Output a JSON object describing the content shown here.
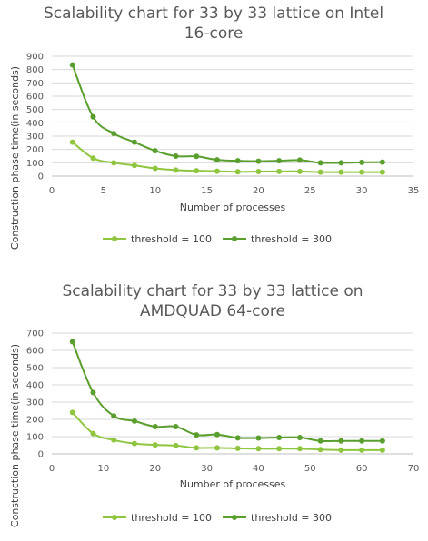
{
  "colors": {
    "series1": "#8fc53f",
    "series2": "#5a9e2e"
  },
  "chart_data": [
    {
      "type": "line",
      "title_line1": "Scalability chart for 33 by 33 lattice on Intel",
      "title_line2": "16-core",
      "xlabel": "Number of processes",
      "ylabel": "Construction phase time(in seconds)",
      "xlim": [
        0,
        35
      ],
      "ylim": [
        0,
        900
      ],
      "xticks": [
        0,
        5,
        10,
        15,
        20,
        25,
        30,
        35
      ],
      "yticks": [
        0,
        100,
        200,
        300,
        400,
        500,
        600,
        700,
        800,
        900
      ],
      "grid": true,
      "legend": "bottom",
      "series": [
        {
          "name": "threshold = 100",
          "x": [
            2,
            4,
            6,
            8,
            10,
            12,
            14,
            16,
            18,
            20,
            22,
            24,
            26,
            28,
            30,
            32
          ],
          "y": [
            255,
            135,
            100,
            80,
            58,
            45,
            40,
            37,
            32,
            34,
            35,
            35,
            30,
            30,
            30,
            30
          ]
        },
        {
          "name": "threshold = 300",
          "x": [
            2,
            4,
            6,
            8,
            10,
            12,
            14,
            16,
            18,
            20,
            22,
            24,
            26,
            28,
            30,
            32
          ],
          "y": [
            835,
            445,
            320,
            255,
            190,
            150,
            148,
            122,
            115,
            112,
            115,
            120,
            100,
            100,
            103,
            105
          ]
        }
      ]
    },
    {
      "type": "line",
      "title_line1": "Scalability chart for 33 by 33 lattice on",
      "title_line2": "AMDQUAD 64-core",
      "xlabel": "Number of processes",
      "ylabel": "Construction phase time(in seconds)",
      "xlim": [
        0,
        70
      ],
      "ylim": [
        0,
        700
      ],
      "xticks": [
        0,
        10,
        20,
        30,
        40,
        50,
        60,
        70
      ],
      "yticks": [
        0,
        100,
        200,
        300,
        400,
        500,
        600,
        700
      ],
      "grid": true,
      "legend": "bottom",
      "series": [
        {
          "name": "threshold = 100",
          "x": [
            4,
            8,
            12,
            16,
            20,
            24,
            28,
            32,
            36,
            40,
            44,
            48,
            52,
            56,
            60,
            64
          ],
          "y": [
            240,
            118,
            80,
            60,
            52,
            48,
            35,
            35,
            32,
            30,
            30,
            30,
            25,
            22,
            22,
            22
          ]
        },
        {
          "name": "threshold = 300",
          "x": [
            4,
            8,
            12,
            16,
            20,
            24,
            28,
            32,
            36,
            40,
            44,
            48,
            52,
            56,
            60,
            64
          ],
          "y": [
            650,
            355,
            220,
            190,
            158,
            158,
            110,
            112,
            93,
            92,
            95,
            95,
            75,
            75,
            75,
            75
          ]
        }
      ]
    }
  ]
}
